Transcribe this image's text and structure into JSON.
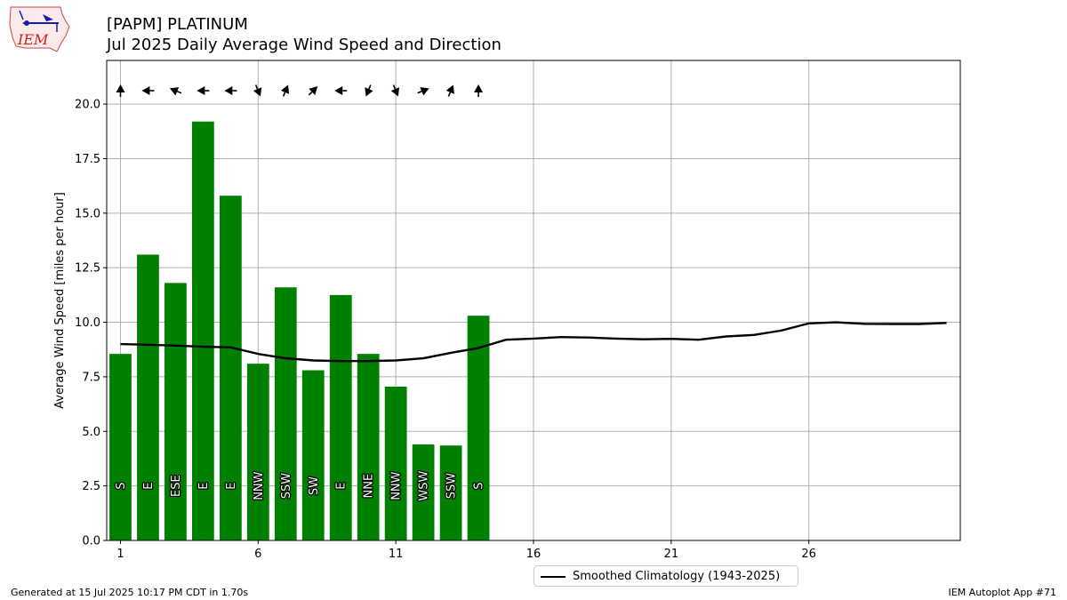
{
  "header": {
    "title_line1": "[PAPM] PLATINUM",
    "title_line2": "Jul 2025 Daily Average Wind Speed and Direction",
    "logo_text": "IEM"
  },
  "footer": {
    "left": "Generated at 15 Jul 2025 10:17 PM CDT in 1.70s",
    "right": "IEM Autoplot App #71"
  },
  "colors": {
    "bar": "#008000",
    "climatology": "#000000",
    "grid": "#b0b0b0"
  },
  "chart_data": {
    "type": "bar",
    "ylabel": "Average Wind Speed [miles per hour]",
    "xlim": [
      0.5,
      31.5
    ],
    "ylim": [
      0,
      22
    ],
    "xticks": [
      1,
      6,
      11,
      16,
      21,
      26
    ],
    "yticks": [
      0.0,
      2.5,
      5.0,
      7.5,
      10.0,
      12.5,
      15.0,
      17.5,
      20.0
    ],
    "ytick_labels": [
      "0.0",
      "2.5",
      "5.0",
      "7.5",
      "10.0",
      "12.5",
      "15.0",
      "17.5",
      "20.0"
    ],
    "grid": true,
    "legend_position": "bottom-center",
    "days": [
      1,
      2,
      3,
      4,
      5,
      6,
      7,
      8,
      9,
      10,
      11,
      12,
      13,
      14
    ],
    "speeds": [
      8.55,
      13.1,
      11.8,
      19.2,
      15.8,
      8.1,
      11.6,
      7.8,
      11.25,
      8.55,
      7.05,
      4.4,
      4.35,
      10.3
    ],
    "directions": [
      "S",
      "E",
      "ESE",
      "E",
      "E",
      "NNW",
      "SSW",
      "SW",
      "E",
      "NNE",
      "NNW",
      "WSW",
      "SSW",
      "S"
    ],
    "direction_degrees": [
      180,
      90,
      112.5,
      90,
      90,
      337.5,
      202.5,
      225,
      90,
      22.5,
      337.5,
      247.5,
      202.5,
      180
    ],
    "climatology": {
      "name": "Smoothed Climatology (1943-2025)",
      "x": [
        1,
        2,
        3,
        4,
        5,
        6,
        7,
        8,
        9,
        10,
        11,
        12,
        13,
        14,
        15,
        16,
        17,
        18,
        19,
        20,
        21,
        22,
        23,
        24,
        25,
        26,
        27,
        28,
        29,
        30,
        31
      ],
      "y": [
        9.0,
        8.97,
        8.93,
        8.88,
        8.85,
        8.55,
        8.35,
        8.25,
        8.22,
        8.22,
        8.25,
        8.35,
        8.6,
        8.82,
        9.2,
        9.25,
        9.32,
        9.3,
        9.25,
        9.22,
        9.24,
        9.2,
        9.35,
        9.42,
        9.62,
        9.95,
        10.0,
        9.93,
        9.92,
        9.92,
        9.97
      ]
    }
  }
}
